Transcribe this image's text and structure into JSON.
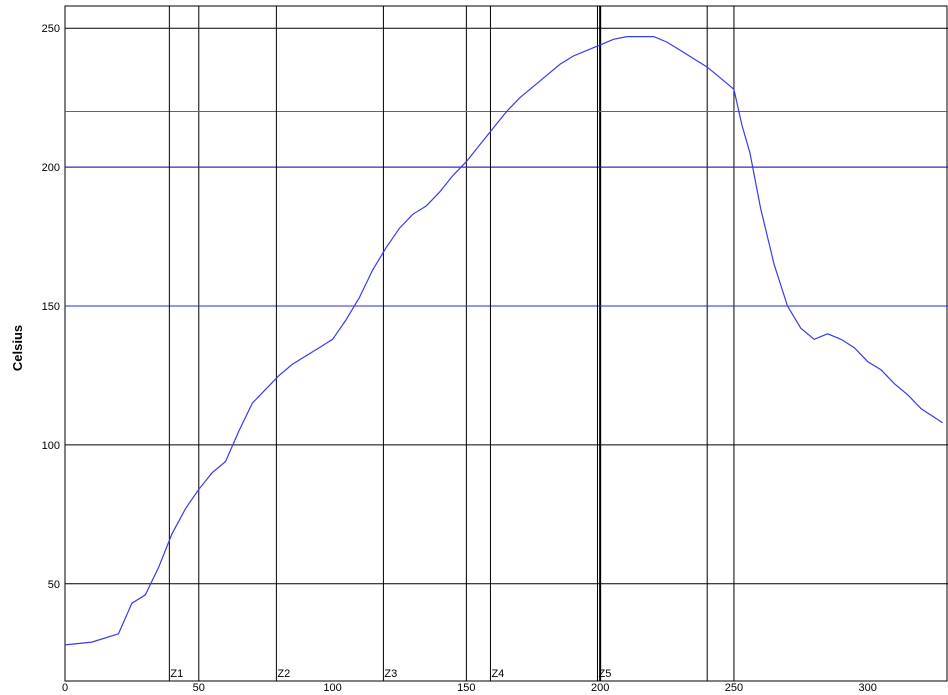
{
  "chart_data": {
    "type": "line",
    "ylabel": "Celsius",
    "xlabel": "",
    "xlim": [
      0,
      330
    ],
    "ylim": [
      15,
      258
    ],
    "x_ticks": [
      "0",
      "50",
      "100",
      "150",
      "200",
      "250",
      "300"
    ],
    "y_ticks": [
      "50",
      "100",
      "150",
      "200",
      "250"
    ],
    "grid": true,
    "zones": [
      {
        "label": "Z1",
        "x": 39
      },
      {
        "label": "Z2",
        "x": 79
      },
      {
        "label": "Z3",
        "x": 119
      },
      {
        "label": "Z4",
        "x": 159
      },
      {
        "label": "Z5",
        "x": 199
      }
    ],
    "extra_vlines": [
      50,
      150,
      200,
      240,
      250
    ],
    "reference_lines": [
      {
        "y": 220,
        "color": "#e03030"
      },
      {
        "y": 200,
        "color": "#2b2bd6"
      },
      {
        "y": 150,
        "color": "#2b2bd6"
      }
    ],
    "series": [
      {
        "color": "#3a3af0",
        "x": [
          0,
          10,
          20,
          25,
          30,
          35,
          40,
          45,
          50,
          55,
          60,
          65,
          70,
          75,
          80,
          85,
          90,
          95,
          100,
          105,
          110,
          115,
          120,
          125,
          130,
          135,
          140,
          145,
          150,
          155,
          160,
          165,
          170,
          175,
          180,
          185,
          190,
          195,
          200,
          205,
          210,
          215,
          220,
          225,
          230,
          235,
          240,
          245,
          250,
          253,
          256,
          260,
          265,
          270,
          275,
          280,
          285,
          290,
          295,
          300,
          305,
          310,
          315,
          320,
          328
        ],
        "y": [
          28,
          29,
          32,
          43,
          46,
          56,
          68,
          77,
          84,
          90,
          94,
          105,
          115,
          120,
          125,
          129,
          132,
          135,
          138,
          145,
          153,
          163,
          171,
          178,
          183,
          186,
          191,
          197,
          202,
          208,
          214,
          220,
          225,
          229,
          233,
          237,
          240,
          242,
          244,
          246,
          247,
          247,
          247,
          245,
          242,
          239,
          236,
          232,
          228,
          215,
          205,
          185,
          165,
          150,
          142,
          138,
          140,
          138,
          135,
          130,
          127,
          122,
          118,
          113,
          108
        ]
      }
    ]
  }
}
